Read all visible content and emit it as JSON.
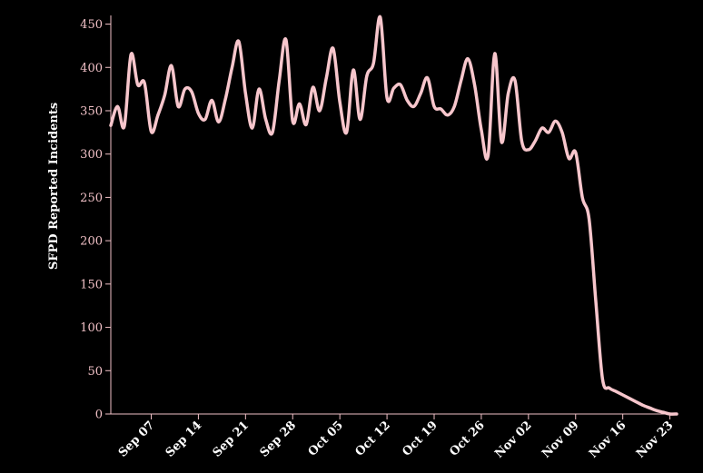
{
  "chart_data": {
    "type": "line",
    "title": "",
    "xlabel": "",
    "ylabel": "SFPD Reported Incidents",
    "x_start": "2018-09-01",
    "x_ticks": [
      "Sep 07",
      "Sep 14",
      "Sep 21",
      "Sep 28",
      "Oct 05",
      "Oct 12",
      "Oct 19",
      "Oct 26",
      "Nov 02",
      "Nov 09",
      "Nov 16",
      "Nov 23"
    ],
    "y_ticks": [
      "0",
      "50",
      "100",
      "150",
      "200",
      "250",
      "300",
      "350",
      "400",
      "450"
    ],
    "ylim": [
      0,
      460
    ],
    "grid": false,
    "legend": "none",
    "line_color": "#f7c6cc",
    "series": [
      {
        "x": [
          "2018-09-01",
          "2018-09-02",
          "2018-09-03",
          "2018-09-04",
          "2018-09-05",
          "2018-09-06",
          "2018-09-07",
          "2018-09-08",
          "2018-09-09",
          "2018-09-10",
          "2018-09-11",
          "2018-09-12",
          "2018-09-13",
          "2018-09-14",
          "2018-09-15",
          "2018-09-16",
          "2018-09-17",
          "2018-09-18",
          "2018-09-19",
          "2018-09-20",
          "2018-09-21",
          "2018-09-22",
          "2018-09-23",
          "2018-09-24",
          "2018-09-25",
          "2018-09-26",
          "2018-09-27",
          "2018-09-28",
          "2018-09-29",
          "2018-09-30",
          "2018-10-01",
          "2018-10-02",
          "2018-10-03",
          "2018-10-04",
          "2018-10-05",
          "2018-10-06",
          "2018-10-07",
          "2018-10-08",
          "2018-10-09",
          "2018-10-10",
          "2018-10-11",
          "2018-10-12",
          "2018-10-13",
          "2018-10-14",
          "2018-10-15",
          "2018-10-16",
          "2018-10-17",
          "2018-10-18",
          "2018-10-19",
          "2018-10-20",
          "2018-10-21",
          "2018-10-22",
          "2018-10-23",
          "2018-10-24",
          "2018-10-25",
          "2018-10-26",
          "2018-10-27",
          "2018-10-28",
          "2018-10-29",
          "2018-10-30",
          "2018-10-31",
          "2018-11-01",
          "2018-11-02",
          "2018-11-03",
          "2018-11-04",
          "2018-11-05",
          "2018-11-06",
          "2018-11-07",
          "2018-11-08",
          "2018-11-09",
          "2018-11-10",
          "2018-11-11",
          "2018-11-12",
          "2018-11-13",
          "2018-11-14",
          "2018-11-15",
          "2018-11-16",
          "2018-11-17",
          "2018-11-18",
          "2018-11-19",
          "2018-11-20",
          "2018-11-21",
          "2018-11-22",
          "2018-11-23",
          "2018-11-24"
        ],
        "values": [
          333,
          355,
          332,
          415,
          380,
          382,
          326,
          345,
          368,
          402,
          355,
          375,
          372,
          347,
          340,
          362,
          337,
          363,
          400,
          430,
          370,
          330,
          375,
          340,
          325,
          385,
          432,
          338,
          358,
          334,
          377,
          350,
          388,
          422,
          360,
          325,
          397,
          340,
          390,
          405,
          458,
          365,
          376,
          380,
          362,
          355,
          370,
          388,
          355,
          352,
          345,
          355,
          385,
          410,
          380,
          328,
          298,
          416,
          314,
          370,
          385,
          315,
          305,
          315,
          330,
          325,
          338,
          325,
          295,
          302,
          250,
          225,
          130,
          40,
          30,
          26,
          22,
          18,
          14,
          10,
          7,
          4,
          2,
          0,
          0
        ]
      }
    ]
  }
}
